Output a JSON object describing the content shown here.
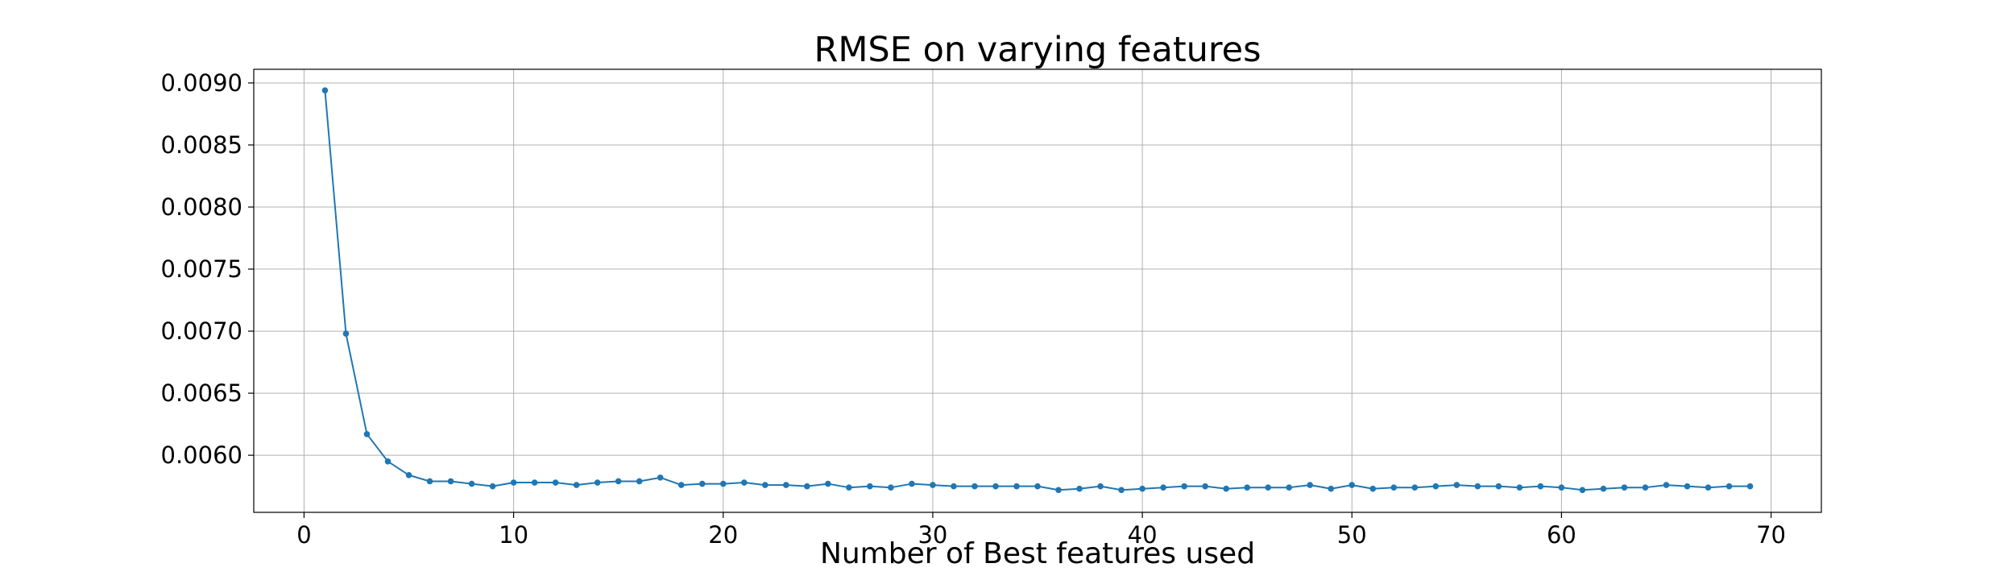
{
  "chart_data": {
    "type": "line",
    "title": "RMSE on varying features",
    "xlabel": "Number of Best features used",
    "ylabel": "",
    "xlim": [
      -2.4,
      72.4
    ],
    "ylim": [
      0.00554,
      0.00911
    ],
    "x_ticks": [
      0,
      10,
      20,
      30,
      40,
      50,
      60,
      70
    ],
    "x_tick_labels": [
      "0",
      "10",
      "20",
      "30",
      "40",
      "50",
      "60",
      "70"
    ],
    "y_ticks": [
      0.006,
      0.0065,
      0.007,
      0.0075,
      0.008,
      0.0085,
      0.009
    ],
    "y_tick_labels": [
      "0.0060",
      "0.0065",
      "0.0070",
      "0.0075",
      "0.0080",
      "0.0085",
      "0.0090"
    ],
    "grid": true,
    "legend": "none",
    "series": [
      {
        "color": "#1f77b4",
        "marker": "circle",
        "x": [
          1,
          2,
          3,
          4,
          5,
          6,
          7,
          8,
          9,
          10,
          11,
          12,
          13,
          14,
          15,
          16,
          17,
          18,
          19,
          20,
          21,
          22,
          23,
          24,
          25,
          26,
          27,
          28,
          29,
          30,
          31,
          32,
          33,
          34,
          35,
          36,
          37,
          38,
          39,
          40,
          41,
          42,
          43,
          44,
          45,
          46,
          47,
          48,
          49,
          50,
          51,
          52,
          53,
          54,
          55,
          56,
          57,
          58,
          59,
          60,
          61,
          62,
          63,
          64,
          65,
          66,
          67,
          68,
          69
        ],
        "values": [
          0.00894,
          0.00698,
          0.00617,
          0.00595,
          0.00584,
          0.00579,
          0.00579,
          0.00577,
          0.00575,
          0.00578,
          0.00578,
          0.00578,
          0.00576,
          0.00578,
          0.00579,
          0.00579,
          0.00582,
          0.00576,
          0.00577,
          0.00577,
          0.00578,
          0.00576,
          0.00576,
          0.00575,
          0.00577,
          0.00574,
          0.00575,
          0.00574,
          0.00577,
          0.00576,
          0.00575,
          0.00575,
          0.00575,
          0.00575,
          0.00575,
          0.00572,
          0.00573,
          0.00575,
          0.00572,
          0.00573,
          0.00574,
          0.00575,
          0.00575,
          0.00573,
          0.00574,
          0.00574,
          0.00574,
          0.00576,
          0.00573,
          0.00576,
          0.00573,
          0.00574,
          0.00574,
          0.00575,
          0.00576,
          0.00575,
          0.00575,
          0.00574,
          0.00575,
          0.00574,
          0.00572,
          0.00573,
          0.00574,
          0.00574,
          0.00576,
          0.00575,
          0.00574,
          0.00575,
          0.00575
        ]
      }
    ]
  }
}
